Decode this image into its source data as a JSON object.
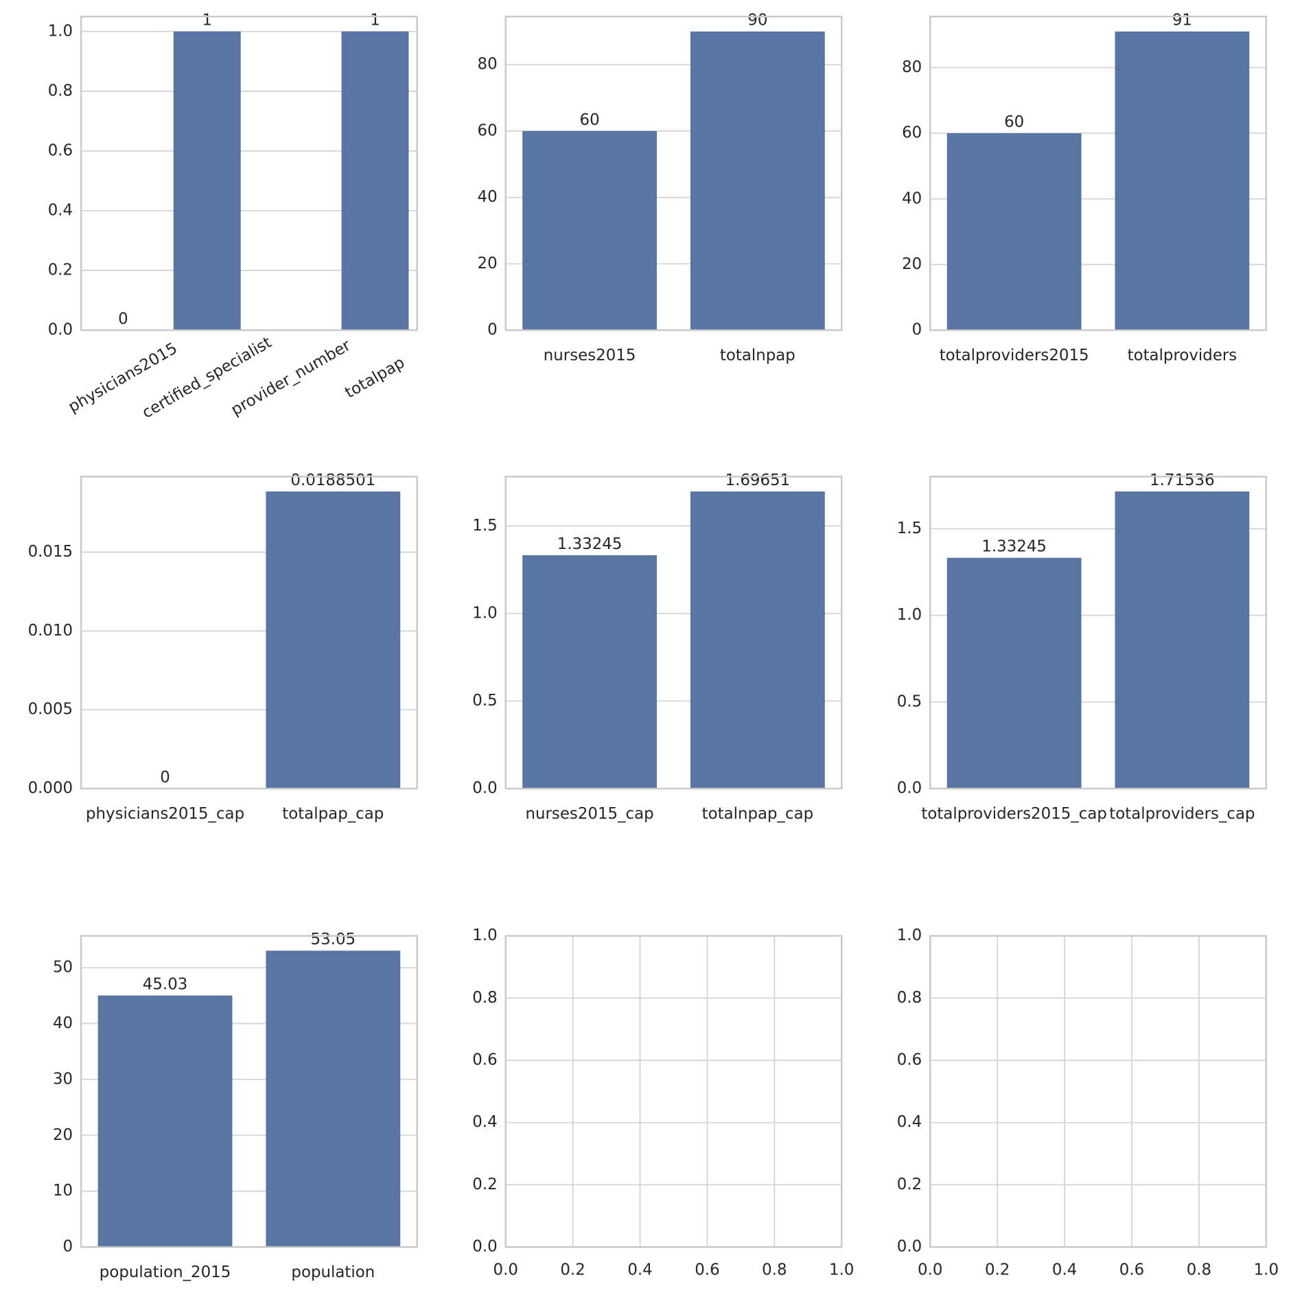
{
  "chart_data": [
    {
      "type": "bar",
      "categories": [
        "physicians2015",
        "certified_specialist",
        "provider_number",
        "totalpap"
      ],
      "values": [
        0,
        1,
        null,
        1
      ],
      "color": "#5975a4",
      "ylim": [
        0,
        1.05
      ],
      "yticks": [
        {
          "value": 0,
          "label": "0.0"
        },
        {
          "value": 0.2,
          "label": "0.2"
        },
        {
          "value": 0.4,
          "label": "0.4"
        },
        {
          "value": 0.6,
          "label": "0.6"
        },
        {
          "value": 0.8,
          "label": "0.8"
        },
        {
          "value": 1,
          "label": "1.0"
        }
      ],
      "grid": true
    },
    {
      "type": "bar",
      "categories": [
        "nurses2015",
        "totalnpap"
      ],
      "values": [
        60,
        90
      ],
      "color": "#5975a4",
      "ylim": [
        0,
        94.5
      ],
      "yticks": [
        0,
        20,
        40,
        60,
        80
      ],
      "grid": true
    },
    {
      "type": "bar",
      "categories": [
        "totalproviders2015",
        "totalproviders"
      ],
      "values": [
        60,
        91
      ],
      "color": "#5975a4",
      "ylim": [
        0,
        95.55
      ],
      "yticks": [
        0,
        20,
        40,
        60,
        80
      ],
      "grid": true
    },
    {
      "type": "bar",
      "categories": [
        "physicians2015_cap",
        "totalpap_cap"
      ],
      "values": [
        0,
        0.0188501
      ],
      "color": "#5975a4",
      "ylim": [
        0,
        0.0197926
      ],
      "yticks": [
        {
          "value": 0,
          "label": "0.000"
        },
        {
          "value": 0.005,
          "label": "0.005"
        },
        {
          "value": 0.01,
          "label": "0.010"
        },
        {
          "value": 0.015,
          "label": "0.015"
        }
      ],
      "grid": true
    },
    {
      "type": "bar",
      "categories": [
        "nurses2015_cap",
        "totalnpap_cap"
      ],
      "values": [
        1.33245,
        1.69651
      ],
      "color": "#5975a4",
      "ylim": [
        0,
        1.7813
      ],
      "yticks": [
        {
          "value": 0,
          "label": "0.0"
        },
        {
          "value": 0.5,
          "label": "0.5"
        },
        {
          "value": 1,
          "label": "1.0"
        },
        {
          "value": 1.5,
          "label": "1.5"
        }
      ],
      "grid": true
    },
    {
      "type": "bar",
      "categories": [
        "totalproviders2015_cap",
        "totalproviders_cap"
      ],
      "values": [
        1.33245,
        1.71536
      ],
      "color": "#5975a4",
      "ylim": [
        0,
        1.8011
      ],
      "yticks": [
        {
          "value": 0,
          "label": "0.0"
        },
        {
          "value": 0.5,
          "label": "0.5"
        },
        {
          "value": 1,
          "label": "1.0"
        },
        {
          "value": 1.5,
          "label": "1.5"
        }
      ],
      "grid": true
    },
    {
      "type": "bar",
      "categories": [
        "population_2015",
        "population"
      ],
      "values": [
        45.03,
        53.05
      ],
      "color": "#5975a4",
      "ylim": [
        0,
        55.7
      ],
      "yticks": [
        0,
        10,
        20,
        30,
        40,
        50
      ],
      "grid": true
    },
    {
      "type": "empty",
      "xlim": [
        0,
        1
      ],
      "ylim": [
        0,
        1
      ],
      "xticks": [
        {
          "value": 0,
          "label": "0.0"
        },
        {
          "value": 0.2,
          "label": "0.2"
        },
        {
          "value": 0.4,
          "label": "0.4"
        },
        {
          "value": 0.6,
          "label": "0.6"
        },
        {
          "value": 0.8,
          "label": "0.8"
        },
        {
          "value": 1,
          "label": "1.0"
        }
      ],
      "yticks": [
        {
          "value": 0,
          "label": "0.0"
        },
        {
          "value": 0.2,
          "label": "0.2"
        },
        {
          "value": 0.4,
          "label": "0.4"
        },
        {
          "value": 0.6,
          "label": "0.6"
        },
        {
          "value": 0.8,
          "label": "0.8"
        },
        {
          "value": 1,
          "label": "1.0"
        }
      ],
      "grid": true
    },
    {
      "type": "empty",
      "xlim": [
        0,
        1
      ],
      "ylim": [
        0,
        1
      ],
      "xticks": [
        {
          "value": 0,
          "label": "0.0"
        },
        {
          "value": 0.2,
          "label": "0.2"
        },
        {
          "value": 0.4,
          "label": "0.4"
        },
        {
          "value": 0.6,
          "label": "0.6"
        },
        {
          "value": 0.8,
          "label": "0.8"
        },
        {
          "value": 1,
          "label": "1.0"
        }
      ],
      "yticks": [
        {
          "value": 0,
          "label": "0.0"
        },
        {
          "value": 0.2,
          "label": "0.2"
        },
        {
          "value": 0.4,
          "label": "0.4"
        },
        {
          "value": 0.6,
          "label": "0.6"
        },
        {
          "value": 0.8,
          "label": "0.8"
        },
        {
          "value": 1,
          "label": "1.0"
        }
      ],
      "grid": true
    }
  ]
}
